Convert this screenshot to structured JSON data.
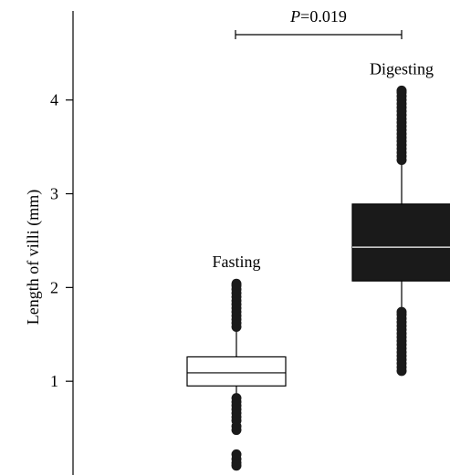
{
  "chart_data": {
    "type": "box",
    "title": "",
    "xlabel": "",
    "ylabel": "Length of villi (mm)",
    "ylim": [
      0,
      4.95
    ],
    "yticks": [
      1,
      2,
      3,
      4
    ],
    "grid": false,
    "legend": "none",
    "groups": [
      {
        "name": "Fasting",
        "fill": "#ffffff",
        "stroke": "#000000",
        "median_color": "#000000",
        "min": 0.1,
        "q1": 0.95,
        "median": 1.09,
        "q3": 1.26,
        "max": 2.04,
        "whisker_low": 0.82,
        "whisker_high": 1.55,
        "outliers": [
          0.1,
          0.13,
          0.17,
          0.22,
          0.48,
          0.52,
          0.58,
          0.62,
          0.66,
          0.7,
          0.74,
          0.78,
          0.82,
          1.58,
          1.62,
          1.66,
          1.7,
          1.74,
          1.78,
          1.82,
          1.86,
          1.9,
          1.94,
          1.98,
          2.02,
          2.04
        ]
      },
      {
        "name": "Digesting",
        "fill": "#1a1a1a",
        "stroke": "#000000",
        "median_color": "#ffffff",
        "min": 1.11,
        "q1": 2.07,
        "median": 2.43,
        "q3": 2.89,
        "max": 4.1,
        "whisker_low": 1.74,
        "whisker_high": 3.36,
        "outliers": [
          1.11,
          1.15,
          1.19,
          1.23,
          1.27,
          1.31,
          1.35,
          1.39,
          1.43,
          1.47,
          1.51,
          1.55,
          1.59,
          1.63,
          1.67,
          1.71,
          1.74,
          3.36,
          3.4,
          3.44,
          3.48,
          3.52,
          3.56,
          3.6,
          3.64,
          3.68,
          3.72,
          3.76,
          3.8,
          3.84,
          3.88,
          3.92,
          3.96,
          4.0,
          4.04,
          4.08,
          4.1
        ]
      }
    ],
    "annotation": {
      "p_symbol": "P",
      "p_rest": "=0.019",
      "between": [
        "Fasting",
        "Digesting"
      ]
    }
  }
}
